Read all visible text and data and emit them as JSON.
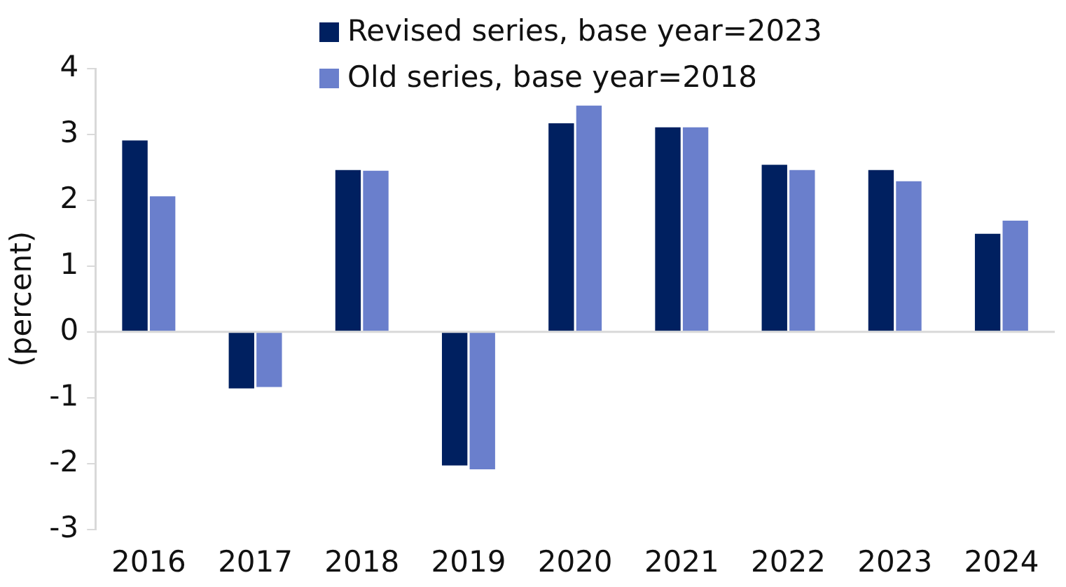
{
  "chart_data": {
    "type": "bar",
    "ylabel": "(percent)",
    "categories": [
      "2016",
      "2017",
      "2018",
      "2019",
      "2020",
      "2021",
      "2022",
      "2023",
      "2024"
    ],
    "series": [
      {
        "name": "Revised series, base year=2023",
        "color": "#002060",
        "values": [
          2.92,
          -0.87,
          2.47,
          -2.04,
          3.18,
          3.12,
          2.55,
          2.47,
          1.5
        ]
      },
      {
        "name": "Old series, base year=2018",
        "color": "#6a7fcc",
        "values": [
          2.07,
          -0.85,
          2.46,
          -2.1,
          3.45,
          3.12,
          2.47,
          2.3,
          1.7
        ]
      }
    ],
    "ref_lines": [
      {
        "axis": "y",
        "value": 0,
        "color": "#d9d9d9"
      }
    ],
    "ylim": [
      -3,
      4
    ],
    "yticks": [
      -3,
      -2,
      -1,
      0,
      1,
      2,
      3,
      4
    ],
    "grid": false,
    "legend": "top"
  }
}
